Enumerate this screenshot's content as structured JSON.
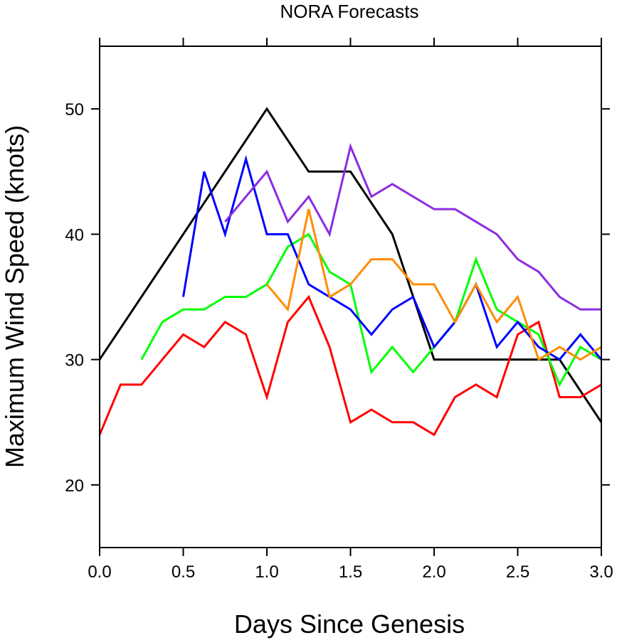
{
  "chart_data": {
    "type": "line",
    "title": "NORA Forecasts",
    "xlabel": "Days Since Genesis",
    "ylabel": "Maximum Wind Speed (knots)",
    "xlim": [
      0,
      3
    ],
    "ylim": [
      15,
      55
    ],
    "xticks": [
      0,
      0.5,
      1,
      1.5,
      2,
      2.5,
      3
    ],
    "xtick_labels": [
      "0.0",
      "0.5",
      "1.0",
      "1.5",
      "2.0",
      "2.5",
      "3.0"
    ],
    "yticks": [
      20,
      30,
      40,
      50
    ],
    "ytick_labels": [
      "20",
      "30",
      "40",
      "50"
    ],
    "grid": false,
    "legend": "none",
    "series": [
      {
        "color": "#000000",
        "x": [
          0,
          1,
          1.25,
          1.5,
          1.75,
          2,
          2.5,
          2.75,
          3
        ],
        "values": [
          30,
          50,
          45,
          45,
          40,
          30,
          30,
          30,
          25
        ]
      },
      {
        "color": "#ff0000",
        "x": [
          0,
          0.125,
          0.25,
          0.375,
          0.5,
          0.625,
          0.75,
          0.875,
          1,
          1.125,
          1.25,
          1.375,
          1.5,
          1.625,
          1.75,
          1.875,
          2,
          2.125,
          2.25,
          2.375,
          2.5,
          2.625,
          2.75,
          2.875,
          3
        ],
        "values": [
          24,
          28,
          28,
          30,
          32,
          31,
          33,
          32,
          27,
          33,
          35,
          31,
          25,
          26,
          25,
          25,
          24,
          27,
          28,
          27,
          32,
          33,
          27,
          27,
          28
        ]
      },
      {
        "color": "#00ff00",
        "x": [
          0.25,
          0.375,
          0.5,
          0.625,
          0.75,
          0.875,
          1,
          1.125,
          1.25,
          1.375,
          1.5,
          1.625,
          1.75,
          1.875,
          2,
          2.125,
          2.25,
          2.375,
          2.5,
          2.625,
          2.75,
          2.875,
          3
        ],
        "values": [
          30,
          33,
          34,
          34,
          35,
          35,
          36,
          39,
          40,
          37,
          36,
          29,
          31,
          29,
          31,
          33,
          38,
          34,
          33,
          32,
          28,
          31,
          30
        ]
      },
      {
        "color": "#0000ff",
        "x": [
          0.5,
          0.625,
          0.75,
          0.875,
          1,
          1.125,
          1.25,
          1.375,
          1.5,
          1.625,
          1.75,
          1.875,
          2,
          2.125,
          2.25,
          2.375,
          2.5,
          2.625,
          2.75,
          2.875,
          3
        ],
        "values": [
          35,
          45,
          40,
          46,
          40,
          40,
          36,
          35,
          34,
          32,
          34,
          35,
          31,
          33,
          36,
          31,
          33,
          31,
          30,
          32,
          30
        ]
      },
      {
        "color": "#8b2be2",
        "x": [
          0.75,
          0.875,
          1,
          1.125,
          1.25,
          1.375,
          1.5,
          1.625,
          1.75,
          1.875,
          2,
          2.125,
          2.25,
          2.375,
          2.5,
          2.625,
          2.75,
          2.875,
          3
        ],
        "values": [
          41,
          43,
          45,
          41,
          43,
          40,
          47,
          43,
          44,
          43,
          42,
          42,
          41,
          40,
          38,
          37,
          35,
          34,
          34
        ]
      },
      {
        "color": "#ff8c00",
        "x": [
          1,
          1.125,
          1.25,
          1.375,
          1.5,
          1.625,
          1.75,
          1.875,
          2,
          2.125,
          2.25,
          2.375,
          2.5,
          2.625,
          2.75,
          2.875,
          3
        ],
        "values": [
          36,
          34,
          42,
          35,
          36,
          38,
          38,
          36,
          36,
          33,
          36,
          33,
          35,
          30,
          31,
          30,
          31
        ]
      }
    ]
  }
}
